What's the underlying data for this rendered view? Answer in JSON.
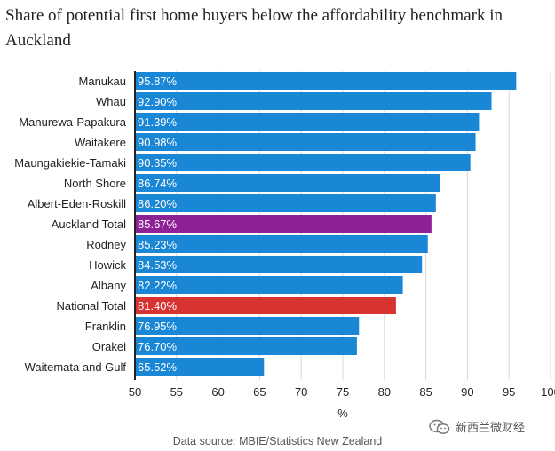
{
  "title": "Share of potential first home buyers below the affordability benchmark in Auckland",
  "source": "Data source: MBIE/Statistics New Zealand",
  "watermark": "新西兰微财经",
  "colors": {
    "default": "#1a86d6",
    "auckland_total": "#8e2196",
    "national_total": "#d63331"
  },
  "chart_data": {
    "type": "bar",
    "orientation": "horizontal",
    "title": "Share of potential first home buyers below the affordability benchmark in Auckland",
    "xlabel": "%",
    "ylabel": "",
    "xlim": [
      50,
      100
    ],
    "xticks": [
      50,
      55,
      60,
      65,
      70,
      75,
      80,
      85,
      90,
      95,
      100
    ],
    "grid": "vertical",
    "categories": [
      "Manukau",
      "Whau",
      "Manurewa-Papakura",
      "Waitakere",
      "Maungakiekie-Tamaki",
      "North Shore",
      "Albert-Eden-Roskill",
      "Auckland Total",
      "Rodney",
      "Howick",
      "Albany",
      "National Total",
      "Franklin",
      "Orakei",
      "Waitemata and Gulf"
    ],
    "values": [
      95.87,
      92.9,
      91.39,
      90.98,
      90.35,
      86.74,
      86.2,
      85.67,
      85.23,
      84.53,
      82.22,
      81.4,
      76.95,
      76.7,
      65.52
    ],
    "data_labels": [
      "95.87%",
      "92.90%",
      "91.39%",
      "90.98%",
      "90.35%",
      "86.74%",
      "86.20%",
      "85.67%",
      "85.23%",
      "84.53%",
      "82.22%",
      "81.40%",
      "76.95%",
      "76.70%",
      "65.52%"
    ],
    "highlight": {
      "Auckland Total": "#8e2196",
      "National Total": "#d63331"
    }
  }
}
